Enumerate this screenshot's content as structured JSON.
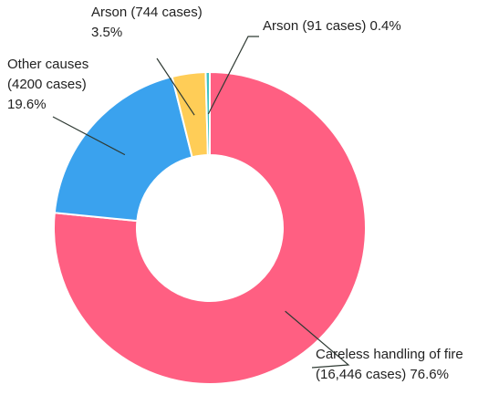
{
  "chart_data": {
    "type": "pie",
    "variant": "donut",
    "slices": [
      {
        "category": "Careless handling of fire",
        "cases": 16446,
        "percent": 76.6,
        "color": "#ff5f82",
        "label_lines": [
          "Careless handling of fire",
          "(16,446 cases) 76.6%"
        ]
      },
      {
        "category": "Other causes",
        "cases": 4200,
        "percent": 19.6,
        "color": "#3aa2ee",
        "label_lines": [
          "Other causes",
          "(4200 cases)",
          "19.6%"
        ]
      },
      {
        "category": "Arson",
        "cases": 744,
        "percent": 3.5,
        "color": "#ffcd57",
        "label_lines": [
          "Arson (744 cases)",
          "3.5%"
        ]
      },
      {
        "category": "Arson",
        "cases": 91,
        "percent": 0.4,
        "color": "#40c2c2",
        "label_lines": [
          "Arson (91 cases) 0.4%"
        ]
      }
    ]
  }
}
